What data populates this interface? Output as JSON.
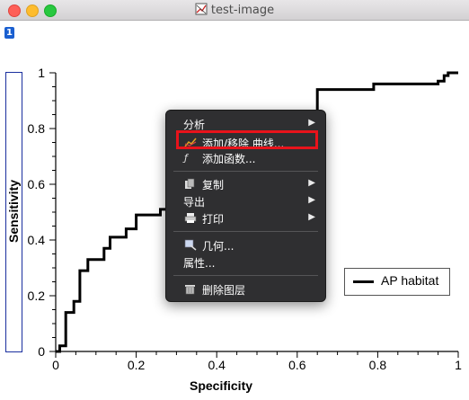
{
  "window": {
    "title": "test-image",
    "layer_index": "1"
  },
  "colors": {
    "curve": "#000000",
    "menu_bg": "#2f2f31",
    "highlight": "#e8131b",
    "ylabel_border": "#1a2f9e"
  },
  "chart_data": {
    "type": "line",
    "title": "",
    "xlabel": "Specificity",
    "ylabel": "Sensitivity",
    "xlim": [
      0,
      1
    ],
    "ylim": [
      0,
      1
    ],
    "xticks": [
      "0",
      "0.2",
      "0.4",
      "0.6",
      "0.8",
      "1"
    ],
    "yticks": [
      "0",
      "0.2",
      "0.4",
      "0.6",
      "0.8",
      "1"
    ],
    "legend_position": "right",
    "series": [
      {
        "name": "AP habitat",
        "x": [
          0,
          0.01,
          0.01,
          0.025,
          0.025,
          0.045,
          0.045,
          0.06,
          0.06,
          0.08,
          0.08,
          0.12,
          0.12,
          0.135,
          0.135,
          0.175,
          0.175,
          0.2,
          0.2,
          0.26,
          0.26,
          0.28,
          0.28,
          0.58,
          0.58,
          0.65,
          0.65,
          0.79,
          0.79,
          0.95,
          0.95,
          0.965,
          0.965,
          0.975,
          0.975,
          1
        ],
        "y": [
          0,
          0,
          0.02,
          0.02,
          0.14,
          0.14,
          0.18,
          0.18,
          0.29,
          0.29,
          0.33,
          0.33,
          0.37,
          0.37,
          0.41,
          0.41,
          0.44,
          0.44,
          0.49,
          0.49,
          0.51,
          0.51,
          0.52,
          0.52,
          0.53,
          0.53,
          0.94,
          0.94,
          0.96,
          0.96,
          0.97,
          0.97,
          0.99,
          0.99,
          1.0,
          1.0
        ]
      }
    ]
  },
  "context_menu": {
    "items": [
      {
        "label": "分析",
        "submenu": true,
        "icon": ""
      },
      {
        "label": "添加/移除 曲线...",
        "submenu": false,
        "icon": "curves-icon",
        "highlighted": true
      },
      {
        "label": "添加函数...",
        "submenu": false,
        "icon": "function-icon"
      },
      {
        "label": "复制",
        "submenu": true,
        "icon": "copy-icon"
      },
      {
        "label": "导出",
        "submenu": true,
        "icon": ""
      },
      {
        "label": "打印",
        "submenu": true,
        "icon": "printer-icon"
      },
      {
        "label": "几何...",
        "submenu": false,
        "icon": "geometry-icon"
      },
      {
        "label": "属性...",
        "submenu": false,
        "icon": ""
      },
      {
        "label": "删除图层",
        "submenu": false,
        "icon": "trash-icon"
      }
    ],
    "arrow_glyph": "▶"
  }
}
